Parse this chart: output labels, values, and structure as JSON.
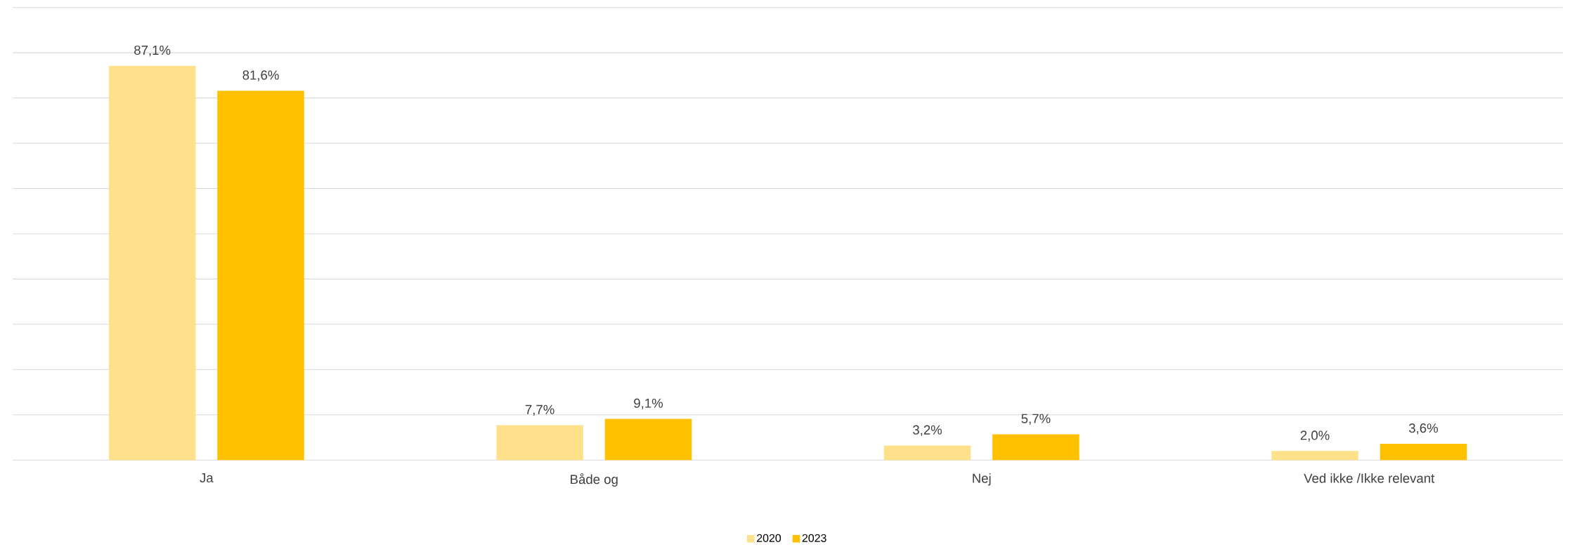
{
  "chart_data": {
    "type": "bar",
    "categories": [
      "Ja",
      "Både og",
      "Nej",
      "Ved ikke /Ikke relevant"
    ],
    "series": [
      {
        "name": "2020",
        "color": "#fee18a",
        "values": [
          87.1,
          7.7,
          3.2,
          2.0
        ],
        "value_labels": [
          "87,1%",
          "7,7%",
          "3,2%",
          "2,0%"
        ]
      },
      {
        "name": "2023",
        "color": "#ffc000",
        "values": [
          81.6,
          9.1,
          5.7,
          3.6
        ],
        "value_labels": [
          "81,6%",
          "9,1%",
          "5,7%",
          "3,6%"
        ]
      }
    ],
    "ylim": [
      0,
      100
    ],
    "yticks": [
      {
        "value": 0,
        "label": null
      },
      {
        "value": 10,
        "label": null
      },
      {
        "value": 20,
        "label": null
      },
      {
        "value": 30,
        "label": null
      },
      {
        "value": 40,
        "label": null
      },
      {
        "value": 50,
        "label": null
      },
      {
        "value": 60,
        "label": null
      },
      {
        "value": 70,
        "label": null
      },
      {
        "value": 80,
        "label": null
      },
      {
        "value": 90,
        "label": null
      },
      {
        "value": 100,
        "label": null
      }
    ],
    "grid": "y",
    "legend": "bottom"
  }
}
